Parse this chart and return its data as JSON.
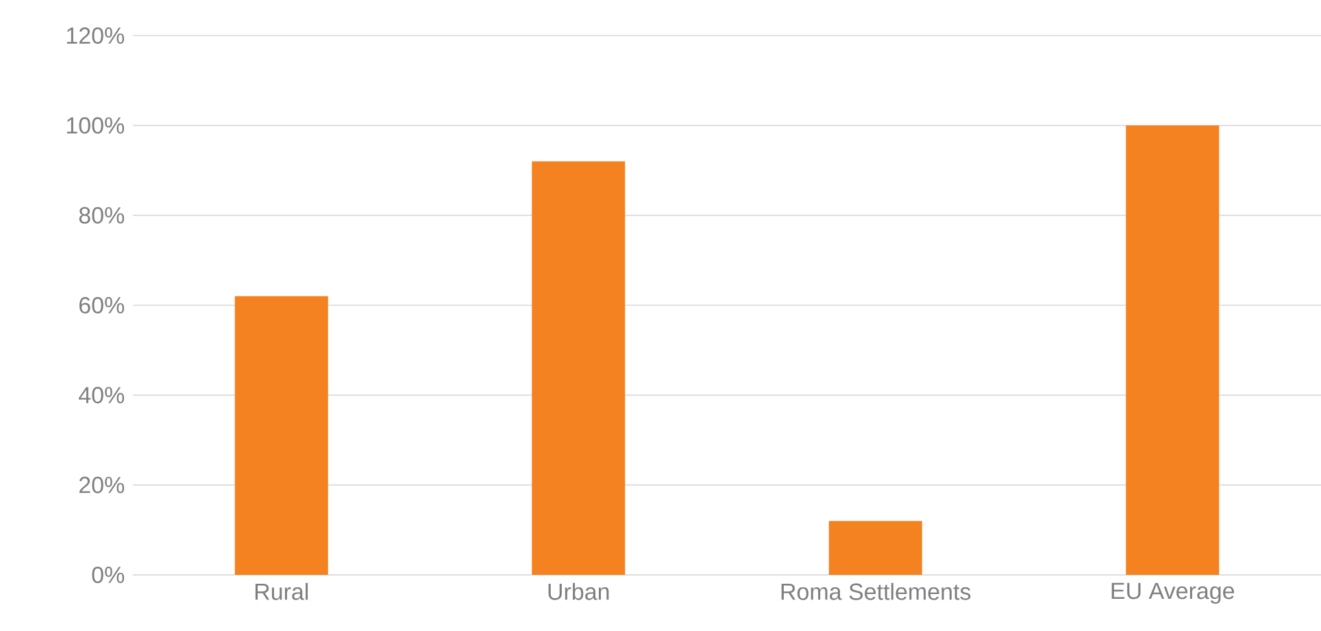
{
  "chart_data": {
    "type": "bar",
    "categories": [
      "Rural",
      "Urban",
      "Roma Settlements",
      "EU Average"
    ],
    "values": [
      62,
      92,
      12,
      100
    ],
    "color": "#f58220",
    "ylim": [
      0,
      120
    ],
    "yticks": [
      {
        "value": 0,
        "label": "0%"
      },
      {
        "value": 20,
        "label": "20%"
      },
      {
        "value": 40,
        "label": "40%"
      },
      {
        "value": 60,
        "label": "60%"
      },
      {
        "value": 80,
        "label": "80%"
      },
      {
        "value": 100,
        "label": "100%"
      },
      {
        "value": 120,
        "label": "120%"
      }
    ],
    "grid": "y"
  }
}
